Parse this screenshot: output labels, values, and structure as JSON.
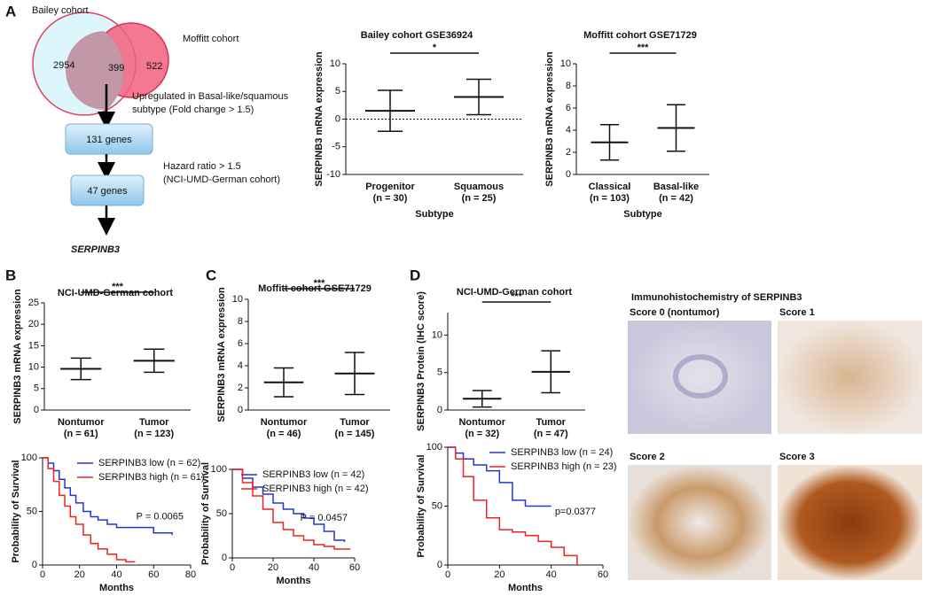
{
  "panel_labels": [
    "A",
    "B",
    "C",
    "D"
  ],
  "venn": {
    "left_label": "Bailey cohort",
    "right_label": "Moffitt cohort",
    "left_only": 2954,
    "overlap": 399,
    "right_only": 522
  },
  "flow": {
    "step1": [
      "Upregulated in Basal-like/squamous",
      "subtype (Fold change > 1.5)"
    ],
    "box1": "131 genes",
    "step2": [
      "Hazard ratio > 1.5",
      "(NCI-UMD-German cohort)"
    ],
    "box2": "47 genes",
    "result": "SERPINB3"
  },
  "ihc": {
    "title": "Immunohistochemistry of SERPINB3",
    "scores": [
      "Score 0 (nontumor)",
      "Score 1",
      "Score 2",
      "Score 3"
    ]
  },
  "chart_data": [
    {
      "type": "errorbar",
      "title": "Bailey cohort GSE36924",
      "y_label": "SERPINB3 mRNA expression",
      "x_label": "Subtype",
      "categories": [
        "Progenitor",
        "Squamous"
      ],
      "n_labels": [
        "(n = 30)",
        "(n = 25)"
      ],
      "values": [
        1.5,
        4.0
      ],
      "errors": [
        3.7,
        3.2
      ],
      "ylim": [
        -10,
        10
      ],
      "yticks": [
        -10,
        -5,
        0,
        5,
        10
      ],
      "zero_line": true,
      "significance": "*"
    },
    {
      "type": "errorbar",
      "title": "Moffitt cohort GSE71729",
      "y_label": "SERPINB3 mRNA expression",
      "x_label": "Subtype",
      "categories": [
        "Classical",
        "Basal-like"
      ],
      "n_labels": [
        "(n = 103)",
        "(n = 42)"
      ],
      "values": [
        2.9,
        4.2
      ],
      "errors": [
        1.6,
        2.1
      ],
      "ylim": [
        0,
        10
      ],
      "yticks": [
        0,
        2,
        4,
        6,
        8,
        10
      ],
      "significance": "***"
    },
    {
      "type": "errorbar",
      "title": "NCI-UMD-German cohort",
      "y_label": "SERPINB3 mRNA expression",
      "categories": [
        "Nontumor",
        "Tumor"
      ],
      "n_labels": [
        "(n = 61)",
        "(n = 123)"
      ],
      "values": [
        9.6,
        11.5
      ],
      "errors": [
        2.5,
        2.7
      ],
      "ylim": [
        0,
        25
      ],
      "yticks": [
        0,
        5,
        10,
        15,
        20,
        25
      ],
      "significance": "***"
    },
    {
      "type": "survival",
      "y_label": "Probability of Survival",
      "x_label": "Months",
      "annotation": "P = 0.0065",
      "legend": "upper right",
      "xlim": [
        0,
        80
      ],
      "xticks": [
        0,
        20,
        40,
        60,
        80
      ],
      "ylim": [
        0,
        100
      ],
      "yticks": [
        0,
        50,
        100
      ],
      "series": [
        {
          "name": "SERPINB3 low (n = 62)",
          "color": "#2233dd",
          "x": [
            0,
            3,
            6,
            9,
            12,
            15,
            18,
            22,
            26,
            30,
            35,
            40,
            50,
            60,
            70
          ],
          "values": [
            100,
            95,
            88,
            80,
            72,
            65,
            58,
            50,
            45,
            42,
            38,
            35,
            35,
            30,
            28
          ]
        },
        {
          "name": "SERPINB3 high (n = 61)",
          "color": "#ee2222",
          "x": [
            0,
            3,
            6,
            9,
            12,
            15,
            18,
            22,
            26,
            30,
            35,
            40,
            45,
            50
          ],
          "values": [
            100,
            90,
            78,
            65,
            55,
            45,
            38,
            28,
            20,
            15,
            10,
            5,
            3,
            3
          ]
        }
      ]
    },
    {
      "type": "errorbar",
      "title": "Moffitt cohort GSE71729",
      "y_label": "SERPINB3 mRNA expression",
      "categories": [
        "Nontumor",
        "Tumor"
      ],
      "n_labels": [
        "(n = 46)",
        "(n = 145)"
      ],
      "values": [
        2.5,
        3.3
      ],
      "errors": [
        1.3,
        1.9
      ],
      "ylim": [
        0,
        10
      ],
      "yticks": [
        0,
        2,
        4,
        6,
        8,
        10
      ],
      "significance": "***"
    },
    {
      "type": "survival",
      "y_label": "Probability of Survival",
      "x_label": "Months",
      "annotation": "P = 0.0457",
      "legend": "upper right",
      "xlim": [
        0,
        60
      ],
      "xticks": [
        0,
        20,
        40,
        60
      ],
      "ylim": [
        0,
        100
      ],
      "yticks": [
        0,
        50,
        100
      ],
      "series": [
        {
          "name": "SERPINB3 low (n = 42)",
          "color": "#2233dd",
          "x": [
            0,
            5,
            10,
            15,
            20,
            25,
            30,
            35,
            40,
            45,
            50,
            55
          ],
          "values": [
            100,
            90,
            80,
            72,
            62,
            55,
            50,
            45,
            38,
            30,
            20,
            18
          ]
        },
        {
          "name": "SERPINB3 high (n = 42)",
          "color": "#ee2222",
          "x": [
            0,
            5,
            10,
            15,
            20,
            25,
            30,
            35,
            40,
            45,
            50,
            55,
            58
          ],
          "values": [
            100,
            85,
            70,
            55,
            40,
            32,
            25,
            20,
            15,
            13,
            10,
            10,
            10
          ]
        }
      ]
    },
    {
      "type": "errorbar",
      "title": "NCI-UMD-German cohort",
      "y_label": "SERPINB3 Protein (IHC score)",
      "categories": [
        "Nontumor",
        "Tumor"
      ],
      "n_labels": [
        "(n = 32)",
        "(n = 47)"
      ],
      "values": [
        1.5,
        5.1
      ],
      "errors": [
        1.1,
        2.8
      ],
      "ylim": [
        0,
        13
      ],
      "yticks": [
        0,
        5,
        10
      ],
      "significance": "***"
    },
    {
      "type": "survival",
      "y_label": "Probability of Survival",
      "x_label": "Months",
      "annotation": "p=0.0377",
      "legend": "upper right",
      "xlim": [
        0,
        60
      ],
      "xticks": [
        0,
        20,
        40,
        60
      ],
      "ylim": [
        0,
        100
      ],
      "yticks": [
        0,
        50,
        100
      ],
      "series": [
        {
          "name": "SERPINB3 low (n = 24)",
          "color": "#2233dd",
          "x": [
            0,
            3,
            6,
            10,
            15,
            20,
            25,
            30,
            35,
            40
          ],
          "values": [
            100,
            95,
            90,
            85,
            80,
            70,
            55,
            50,
            50,
            50
          ]
        },
        {
          "name": "SERPINB3 high (n = 23)",
          "color": "#ee2222",
          "x": [
            0,
            3,
            6,
            10,
            15,
            20,
            25,
            30,
            35,
            40,
            45,
            50
          ],
          "values": [
            100,
            90,
            75,
            55,
            40,
            30,
            28,
            25,
            20,
            15,
            8,
            0
          ]
        }
      ]
    }
  ]
}
